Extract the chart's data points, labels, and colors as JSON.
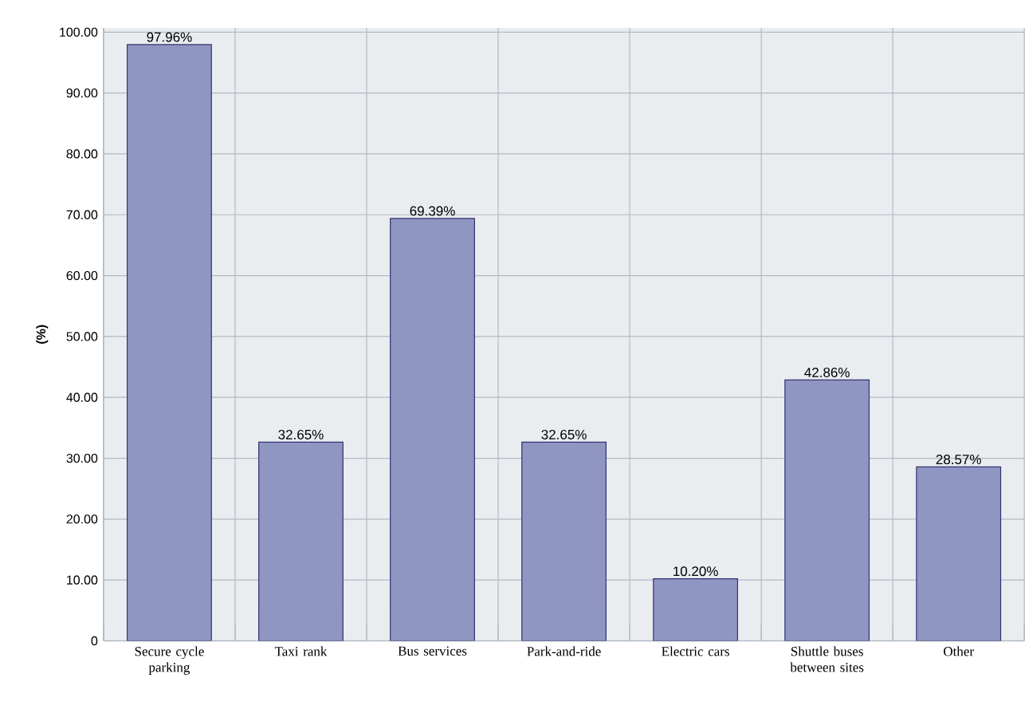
{
  "chart_data": {
    "type": "bar",
    "ylabel": "(%)",
    "categories": [
      "Secure cycle parking",
      "Taxi rank",
      "Bus services",
      "Park-and-ride",
      "Electric cars",
      "Shuttle buses between sites",
      "Other"
    ],
    "values": [
      97.96,
      32.65,
      69.39,
      32.65,
      10.2,
      42.86,
      28.57
    ],
    "value_labels": [
      "97.96%",
      "32.65%",
      "69.39%",
      "32.65%",
      "10.20%",
      "42.86%",
      "28.57%"
    ],
    "color": "#9096c2",
    "ylim": [
      0,
      100.7
    ],
    "yticks": [
      0,
      {
        "value": 10,
        "label": "10.00"
      },
      {
        "value": 20,
        "label": "20.00"
      },
      {
        "value": 30,
        "label": "30.00"
      },
      {
        "value": 40,
        "label": "40.00"
      },
      {
        "value": 50,
        "label": "50.00"
      },
      {
        "value": 60,
        "label": "60.00"
      },
      {
        "value": 70,
        "label": "70.00"
      },
      {
        "value": 80,
        "label": "80.00"
      },
      {
        "value": 90,
        "label": "90.00"
      },
      {
        "value": 100,
        "label": "100.00"
      }
    ],
    "grid": true
  }
}
